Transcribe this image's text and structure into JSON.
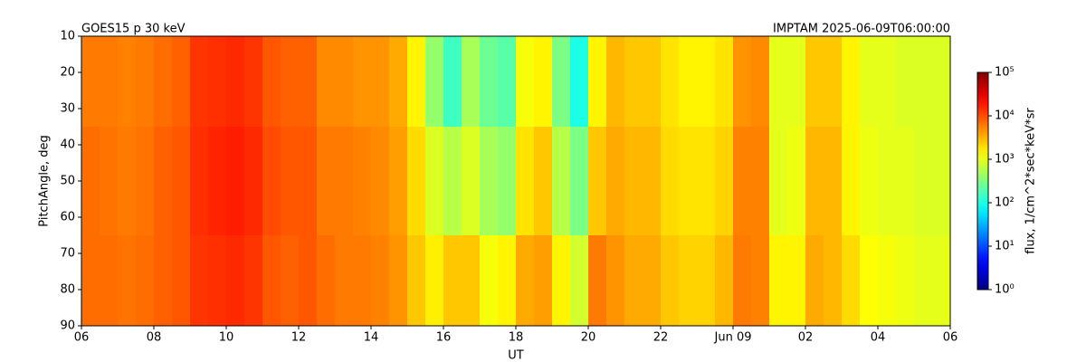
{
  "chart_data": {
    "type": "heatmap",
    "title_left": "GOES15 p 30 keV",
    "title_right": "IMPTAM 2025-06-09T06:00:00",
    "xlabel": "UT",
    "ylabel": "PitchAngle, deg",
    "colorbar_label": "flux, 1/cm^2*sec*keV*sr",
    "colormap": "jet",
    "log_color": true,
    "x": [
      6.25,
      6.75,
      7.25,
      7.75,
      8.25,
      8.75,
      9.25,
      9.75,
      10.25,
      10.75,
      11.25,
      11.75,
      12.25,
      12.75,
      13.25,
      13.75,
      14.25,
      14.75,
      15.25,
      15.75,
      16.25,
      16.75,
      17.25,
      17.75,
      18.25,
      18.75,
      19.25,
      19.75,
      20.25,
      20.75,
      21.25,
      21.75,
      22.25,
      22.75,
      23.25,
      23.75,
      24.25,
      24.75,
      25.25,
      25.75,
      26.25,
      26.75,
      27.25,
      27.75,
      28.25,
      28.75,
      29.25,
      29.75
    ],
    "y": [
      10,
      20,
      30,
      40,
      50,
      60,
      70,
      80,
      90
    ],
    "z": [
      [
        6000,
        6000,
        5500,
        6000,
        7000,
        8000,
        13000,
        14000,
        15000,
        13000,
        9000,
        8000,
        8000,
        5000,
        5000,
        4500,
        4500,
        3500,
        1500,
        400,
        150,
        500,
        250,
        200,
        1200,
        1500,
        300,
        100,
        1500,
        3000,
        2500,
        2500,
        1800,
        1500,
        1500,
        1800,
        4500,
        5000,
        1000,
        1000,
        2500,
        2500,
        1500,
        1000,
        1000,
        900,
        900,
        900
      ],
      [
        6000,
        6000,
        5500,
        6000,
        7000,
        8000,
        13000,
        14000,
        15000,
        13000,
        9000,
        8000,
        8000,
        5000,
        5000,
        4500,
        4500,
        3500,
        1500,
        400,
        150,
        500,
        250,
        200,
        1200,
        1500,
        300,
        100,
        1500,
        3000,
        2500,
        2500,
        1800,
        1500,
        1500,
        1800,
        4500,
        5000,
        1000,
        1000,
        2500,
        2500,
        1500,
        1000,
        1000,
        900,
        900,
        900
      ],
      [
        6000,
        6000,
        5500,
        6000,
        7000,
        8000,
        13000,
        14000,
        15000,
        13000,
        9000,
        8000,
        8000,
        5000,
        5000,
        4500,
        4500,
        3500,
        1500,
        400,
        150,
        500,
        250,
        200,
        1200,
        1500,
        300,
        100,
        1500,
        3000,
        2500,
        2500,
        1800,
        1500,
        1500,
        1800,
        4500,
        5000,
        1000,
        1000,
        2500,
        2500,
        1500,
        1000,
        1000,
        900,
        900,
        900
      ],
      [
        7000,
        6500,
        6000,
        6500,
        8000,
        9000,
        14000,
        16000,
        17000,
        15000,
        10000,
        9000,
        9000,
        6000,
        6000,
        5500,
        5000,
        4000,
        2000,
        900,
        600,
        900,
        500,
        400,
        1800,
        2500,
        600,
        300,
        2500,
        3500,
        3000,
        3000,
        2000,
        1800,
        1800,
        2200,
        5500,
        5500,
        1000,
        1100,
        3000,
        3000,
        1500,
        1100,
        1000,
        1000,
        900,
        900
      ],
      [
        7000,
        6500,
        6000,
        6500,
        8000,
        9000,
        14000,
        16000,
        17000,
        15000,
        10000,
        9000,
        9000,
        6000,
        6000,
        5500,
        5000,
        4000,
        2000,
        900,
        600,
        900,
        500,
        400,
        1800,
        2500,
        600,
        300,
        2500,
        3500,
        3000,
        3000,
        2000,
        1800,
        1800,
        2200,
        5500,
        5500,
        1000,
        1100,
        3000,
        3000,
        1500,
        1100,
        1000,
        1000,
        900,
        900
      ],
      [
        7000,
        6500,
        6000,
        6500,
        8000,
        9000,
        14000,
        16000,
        17000,
        15000,
        10000,
        9000,
        9000,
        6000,
        6000,
        5500,
        5000,
        4000,
        2000,
        900,
        600,
        900,
        500,
        400,
        1800,
        2500,
        600,
        300,
        2500,
        3500,
        3000,
        3000,
        2000,
        1800,
        1800,
        2200,
        5500,
        5500,
        1000,
        1100,
        3000,
        3000,
        1500,
        1100,
        1000,
        1000,
        900,
        900
      ],
      [
        7000,
        7000,
        6500,
        7000,
        8000,
        9000,
        13000,
        14000,
        15000,
        13000,
        9000,
        8000,
        9000,
        7000,
        6000,
        6000,
        5500,
        4500,
        2500,
        1600,
        2500,
        2500,
        1200,
        1500,
        3500,
        4000,
        1500,
        800,
        6000,
        4500,
        3500,
        3500,
        2500,
        2200,
        2200,
        3000,
        6000,
        5500,
        1500,
        1500,
        3500,
        3000,
        2000,
        1300,
        1200,
        1100,
        1000,
        1000
      ],
      [
        7000,
        7000,
        6500,
        7000,
        8000,
        9000,
        13000,
        14000,
        15000,
        13000,
        9000,
        8000,
        9000,
        7000,
        6000,
        6000,
        5500,
        4500,
        2500,
        1600,
        2500,
        2500,
        1200,
        1500,
        3500,
        4000,
        1500,
        800,
        6000,
        4500,
        3500,
        3500,
        2500,
        2200,
        2200,
        3000,
        6000,
        5500,
        1500,
        1500,
        3500,
        3000,
        2000,
        1300,
        1200,
        1100,
        1000,
        1000
      ],
      [
        7000,
        7000,
        6500,
        7000,
        8000,
        9000,
        13000,
        14000,
        15000,
        13000,
        9000,
        8000,
        9000,
        7000,
        6000,
        6000,
        5500,
        4500,
        2500,
        1600,
        2500,
        2500,
        1200,
        1500,
        3500,
        4000,
        1500,
        800,
        6000,
        4500,
        3500,
        3500,
        2500,
        2200,
        2200,
        3000,
        6000,
        5500,
        1500,
        1500,
        3500,
        3000,
        2000,
        1300,
        1200,
        1100,
        1000,
        1000
      ]
    ],
    "xlim": [
      6,
      30
    ],
    "ylim": [
      90,
      10
    ],
    "zlim": [
      1,
      100000
    ],
    "xticks": [
      {
        "value": 6,
        "label": "06"
      },
      {
        "value": 8,
        "label": "08"
      },
      10,
      12,
      14,
      16,
      18,
      20,
      22,
      {
        "value": 24,
        "label": "Jun 09"
      },
      {
        "value": 26,
        "label": "02"
      },
      {
        "value": 28,
        "label": "04"
      },
      {
        "value": 30,
        "label": "06"
      }
    ],
    "yticks": [
      10,
      20,
      30,
      40,
      50,
      60,
      70,
      80,
      90
    ],
    "zticks": [
      {
        "value": 1,
        "label": "10⁰"
      },
      {
        "value": 10,
        "label": "10¹"
      },
      {
        "value": 100,
        "label": "10²"
      },
      {
        "value": 1000,
        "label": "10³"
      },
      {
        "value": 10000,
        "label": "10⁴"
      },
      {
        "value": 100000,
        "label": "10⁵"
      }
    ]
  }
}
